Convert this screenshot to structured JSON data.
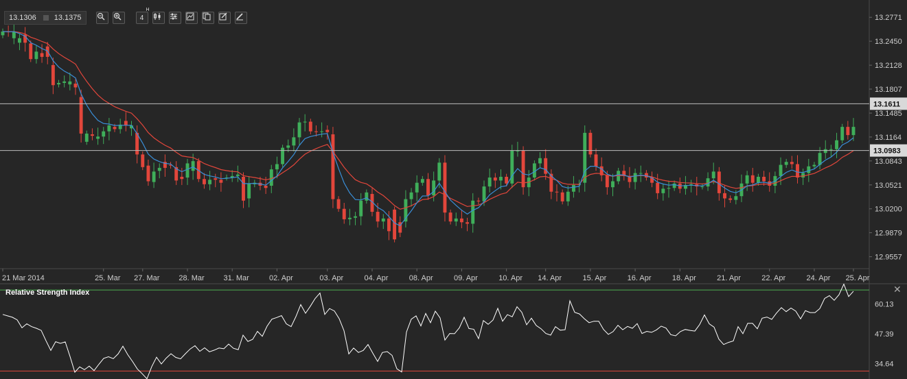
{
  "toolbar": {
    "bid": "13.1306",
    "ask": "13.1375",
    "timeframe": "4",
    "timeframe_unit": "H",
    "icons": [
      "zoom-out-icon",
      "zoom-in-icon",
      "candlestick-type-icon",
      "indicators-icon",
      "chart-settings-icon",
      "copy-icon",
      "edit-icon",
      "draw-icon"
    ]
  },
  "colors": {
    "background": "#262626",
    "bull": "#3fae5a",
    "bear": "#e2463b",
    "ma_fast": "#3a8fd9",
    "ma_slow": "#e2463b",
    "rsi_line": "#ffffff",
    "rsi_upper": "#4caf50",
    "rsi_lower": "#e2463b",
    "hline": "#bdbdbd"
  },
  "chart_data": [
    {
      "type": "candlestick",
      "x_tick_labels": [
        "21 Mar 2014",
        "25. Mar",
        "27. Mar",
        "28. Mar",
        "31. Mar",
        "02. Apr",
        "03. Apr",
        "04. Apr",
        "08. Apr",
        "09. Apr",
        "10. Apr",
        "14. Apr",
        "15. Apr",
        "16. Apr",
        "18. Apr",
        "21. Apr",
        "22. Apr",
        "24. Apr",
        "25. Apr"
      ],
      "y_tick_labels": [
        "13.2771",
        "13.2450",
        "13.2128",
        "13.1807",
        "13.1485",
        "13.1164",
        "13.0843",
        "13.0521",
        "13.0200",
        "12.9879",
        "12.9557"
      ],
      "ylim": [
        12.9397,
        13.2911
      ],
      "price_markers": [
        "13.1611",
        "13.0983"
      ],
      "horizontal_lines": [
        13.1611,
        13.0983
      ],
      "series": [
        {
          "kind": "candles",
          "closes": [
            13.258,
            13.257,
            13.258,
            13.249,
            13.243,
            13.221,
            13.231,
            13.224,
            13.224,
            13.186,
            13.189,
            13.191,
            13.191,
            13.183,
            13.121,
            13.121,
            13.118,
            13.117,
            13.124,
            13.132,
            13.127,
            13.133,
            13.132,
            13.132,
            13.093,
            13.076,
            13.057,
            13.07,
            13.075,
            13.075,
            13.078,
            13.058,
            13.06,
            13.081,
            13.084,
            13.06,
            13.053,
            13.059,
            13.059,
            13.055,
            13.062,
            13.064,
            13.066,
            13.031,
            13.054,
            13.055,
            13.051,
            13.048,
            13.073,
            13.08,
            13.102,
            13.105,
            13.116,
            13.136,
            13.137,
            13.124,
            13.123,
            13.124,
            13.123,
            13.033,
            13.02,
            13.006,
            13.008,
            13.01,
            13.031,
            13.042,
            13.016,
            13.003,
            13.007,
            12.99,
            12.979,
            12.988,
            13.033,
            13.042,
            13.055,
            13.06,
            13.038,
            13.058,
            13.082,
            13.015,
            13.003,
            13.007,
            13.002,
            13.0,
            13.031,
            13.03,
            13.05,
            13.062,
            13.058,
            13.063,
            13.054,
            13.098,
            13.098,
            13.049,
            13.062,
            13.081,
            13.088,
            13.067,
            13.043,
            13.042,
            13.03,
            13.043,
            13.052,
            13.053,
            13.122,
            13.093,
            13.077,
            13.065,
            13.049,
            13.057,
            13.071,
            13.064,
            13.056,
            13.068,
            13.068,
            13.062,
            13.055,
            13.041,
            13.047,
            13.048,
            13.054,
            13.047,
            13.052,
            13.053,
            13.05,
            13.05,
            13.061,
            13.07,
            13.041,
            13.034,
            13.032,
            13.037,
            13.054,
            13.065,
            13.055,
            13.063,
            13.057,
            13.051,
            13.064,
            13.079,
            13.083,
            13.08,
            13.062,
            13.068,
            13.077,
            13.079,
            13.095,
            13.1,
            13.1,
            13.112,
            13.13,
            13.119,
            13.13
          ],
          "opens": [
            13.253,
            13.258,
            13.249,
            13.243,
            13.254,
            13.242,
            13.221,
            13.229,
            13.238,
            13.213,
            13.187,
            13.189,
            13.187,
            13.188,
            13.17,
            13.11,
            13.12,
            13.114,
            13.117,
            13.124,
            13.13,
            13.127,
            13.138,
            13.128,
            13.122,
            13.093,
            13.078,
            13.056,
            13.071,
            13.083,
            13.079,
            13.076,
            13.063,
            13.062,
            13.071,
            13.084,
            13.06,
            13.053,
            13.061,
            13.059,
            13.062,
            13.062,
            13.064,
            13.063,
            13.034,
            13.053,
            13.055,
            13.051,
            13.051,
            13.073,
            13.08,
            13.102,
            13.105,
            13.116,
            13.136,
            13.137,
            13.124,
            13.124,
            13.126,
            13.12,
            13.033,
            13.02,
            13.006,
            13.008,
            13.01,
            13.031,
            13.04,
            13.016,
            13.003,
            13.007,
            13.019,
            13.002,
            13.003,
            13.033,
            13.042,
            13.055,
            13.06,
            13.038,
            13.058,
            13.082,
            13.015,
            13.003,
            13.007,
            13.002,
            13.0,
            13.031,
            13.03,
            13.05,
            13.062,
            13.058,
            13.063,
            13.054,
            13.098,
            13.098,
            13.049,
            13.062,
            13.081,
            13.088,
            13.067,
            13.043,
            13.042,
            13.03,
            13.043,
            13.052,
            13.055,
            13.122,
            13.093,
            13.077,
            13.065,
            13.049,
            13.057,
            13.071,
            13.064,
            13.056,
            13.068,
            13.068,
            13.062,
            13.055,
            13.041,
            13.047,
            13.048,
            13.054,
            13.047,
            13.052,
            13.053,
            13.05,
            13.05,
            13.061,
            13.07,
            13.041,
            13.034,
            13.032,
            13.037,
            13.054,
            13.065,
            13.055,
            13.063,
            13.057,
            13.051,
            13.064,
            13.079,
            13.083,
            13.08,
            13.062,
            13.068,
            13.077,
            13.079,
            13.095,
            13.1,
            13.1,
            13.112,
            13.13,
            13.119
          ]
        },
        {
          "kind": "line",
          "role": "ma_fast"
        },
        {
          "kind": "line",
          "role": "ma_slow"
        }
      ]
    },
    {
      "type": "line",
      "title": "Relative Strength Index",
      "y_tick_labels": [
        "60.13",
        "47.39",
        "34.64"
      ],
      "ylim": [
        29.0,
        67.5
      ],
      "levels": [
        66.0,
        31.5
      ],
      "values": [
        55.6,
        55.0,
        54.4,
        53.3,
        49.9,
        51.6,
        50.4,
        49.7,
        48.8,
        44.4,
        40.3,
        44.0,
        43.3,
        43.9,
        37.7,
        31.0,
        33.3,
        32.1,
        33.6,
        31.7,
        34.4,
        36.9,
        37.6,
        36.8,
        38.8,
        42.1,
        38.5,
        35.6,
        32.4,
        30.4,
        28.2,
        33.4,
        37.4,
        34.5,
        37.0,
        38.9,
        37.3,
        36.7,
        38.9,
        40.9,
        42.3,
        39.9,
        41.4,
        39.7,
        40.4,
        41.3,
        41.0,
        43.0,
        41.2,
        40.6,
        46.8,
        44.1,
        45.0,
        48.4,
        46.3,
        50.6,
        53.6,
        54.3,
        55.1,
        51.6,
        50.4,
        54.7,
        59.8,
        56.1,
        59.1,
        62.4,
        64.7,
        55.6,
        58.1,
        57.1,
        53.8,
        48.7,
        38.8,
        41.3,
        39.4,
        40.3,
        42.8,
        39.1,
        35.6,
        39.4,
        39.8,
        38.2,
        32.5,
        31.1,
        48.1,
        53.6,
        55.0,
        50.7,
        56.0,
        52.1,
        57.0,
        54.1,
        44.7,
        47.5,
        47.4,
        49.9,
        54.4,
        49.6,
        49.3,
        45.3,
        53.0,
        51.4,
        53.2,
        58.2,
        52.7,
        55.5,
        54.6,
        58.9,
        56.5,
        51.2,
        54.0,
        50.9,
        49.5,
        47.5,
        46.8,
        50.4,
        48.9,
        49.1,
        61.4,
        56.5,
        55.8,
        53.8,
        52.1,
        52.7,
        52.7,
        49.2,
        47.1,
        48.3,
        51.0,
        49.1,
        50.5,
        49.7,
        51.7,
        47.5,
        48.4,
        48.0,
        49.0,
        50.6,
        49.8,
        47.0,
        46.5,
        48.3,
        49.2,
        48.8,
        48.5,
        51.3,
        55.4,
        51.6,
        50.2,
        45.1,
        42.8,
        43.7,
        44.3,
        50.4,
        47.4,
        51.8,
        51.8,
        49.5,
        54.0,
        54.5,
        53.5,
        56.2,
        58.5,
        56.8,
        58.3,
        57.0,
        53.7,
        57.2,
        56.4,
        56.4,
        58.1,
        62.4,
        63.6,
        61.6,
        64.0,
        68.5,
        63.2,
        65.5
      ]
    }
  ]
}
